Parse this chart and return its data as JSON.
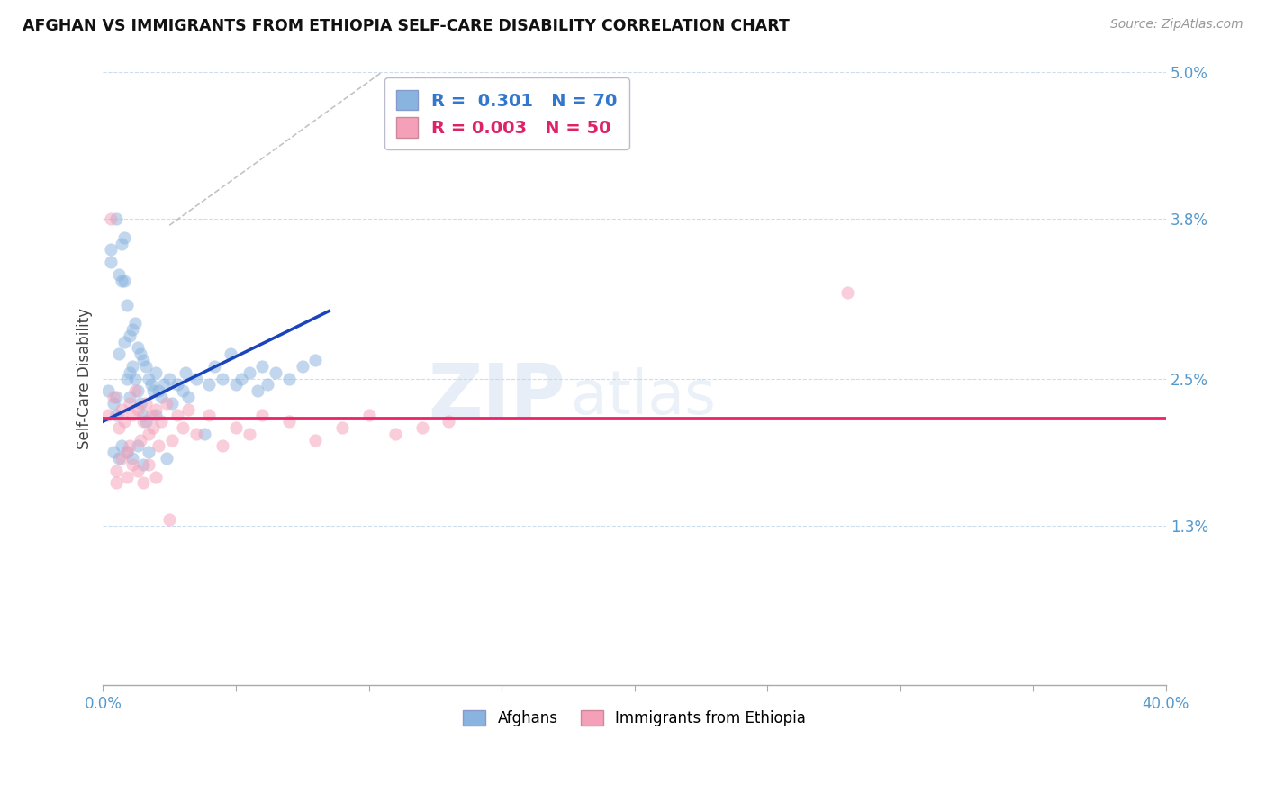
{
  "title": "AFGHAN VS IMMIGRANTS FROM ETHIOPIA SELF-CARE DISABILITY CORRELATION CHART",
  "source": "Source: ZipAtlas.com",
  "ylabel": "Self-Care Disability",
  "xlim": [
    0.0,
    40.0
  ],
  "ylim": [
    0.0,
    5.0
  ],
  "legend_blue_r_val": "0.301",
  "legend_blue_n_val": "70",
  "legend_pink_r_val": "0.003",
  "legend_pink_n_val": "50",
  "legend_label_blue": "Afghans",
  "legend_label_pink": "Immigrants from Ethiopia",
  "blue_color": "#8ab4e0",
  "pink_color": "#f4a0b8",
  "blue_line_color": "#1a44bb",
  "pink_line_color": "#ee2266",
  "scatter_alpha": 0.52,
  "marker_size": 105,
  "watermark_zip": "ZIP",
  "watermark_atlas": "atlas",
  "blue_dots_x": [
    0.2,
    0.3,
    0.3,
    0.4,
    0.5,
    0.5,
    0.5,
    0.6,
    0.6,
    0.7,
    0.7,
    0.8,
    0.8,
    0.8,
    0.9,
    0.9,
    1.0,
    1.0,
    1.0,
    1.1,
    1.1,
    1.2,
    1.2,
    1.3,
    1.3,
    1.4,
    1.4,
    1.5,
    1.5,
    1.6,
    1.6,
    1.7,
    1.8,
    1.9,
    2.0,
    2.0,
    2.1,
    2.2,
    2.3,
    2.5,
    2.6,
    2.8,
    3.0,
    3.1,
    3.2,
    3.5,
    4.0,
    4.2,
    4.5,
    4.8,
    5.0,
    5.2,
    5.5,
    5.8,
    6.0,
    6.2,
    6.5,
    7.0,
    7.5,
    8.0,
    0.4,
    0.6,
    0.7,
    0.9,
    1.1,
    1.3,
    1.5,
    1.7,
    2.4,
    3.8
  ],
  "blue_dots_y": [
    2.4,
    3.55,
    3.45,
    2.3,
    3.8,
    2.2,
    2.35,
    3.35,
    2.7,
    3.6,
    3.3,
    3.65,
    3.3,
    2.8,
    3.1,
    2.5,
    2.85,
    2.55,
    2.35,
    2.9,
    2.6,
    2.95,
    2.5,
    2.75,
    2.4,
    2.7,
    2.3,
    2.65,
    2.2,
    2.6,
    2.15,
    2.5,
    2.45,
    2.4,
    2.55,
    2.2,
    2.4,
    2.35,
    2.45,
    2.5,
    2.3,
    2.45,
    2.4,
    2.55,
    2.35,
    2.5,
    2.45,
    2.6,
    2.5,
    2.7,
    2.45,
    2.5,
    2.55,
    2.4,
    2.6,
    2.45,
    2.55,
    2.5,
    2.6,
    2.65,
    1.9,
    1.85,
    1.95,
    1.9,
    1.85,
    1.95,
    1.8,
    1.9,
    1.85,
    2.05
  ],
  "pink_dots_x": [
    0.2,
    0.3,
    0.4,
    0.5,
    0.6,
    0.7,
    0.8,
    0.9,
    1.0,
    1.0,
    1.1,
    1.2,
    1.3,
    1.4,
    1.5,
    1.6,
    1.7,
    1.8,
    1.9,
    2.0,
    2.1,
    2.2,
    2.4,
    2.6,
    2.8,
    3.0,
    3.2,
    3.5,
    4.0,
    4.5,
    5.0,
    5.5,
    6.0,
    7.0,
    8.0,
    9.0,
    10.0,
    11.0,
    12.0,
    13.0,
    0.5,
    0.7,
    0.9,
    1.1,
    1.3,
    1.5,
    1.7,
    2.0,
    2.5,
    28.0
  ],
  "pink_dots_y": [
    2.2,
    3.8,
    2.35,
    1.65,
    2.1,
    2.25,
    2.15,
    1.9,
    2.3,
    1.95,
    2.2,
    2.4,
    2.25,
    2.0,
    2.15,
    2.3,
    2.05,
    2.2,
    2.1,
    2.25,
    1.95,
    2.15,
    2.3,
    2.0,
    2.2,
    2.1,
    2.25,
    2.05,
    2.2,
    1.95,
    2.1,
    2.05,
    2.2,
    2.15,
    2.0,
    2.1,
    2.2,
    2.05,
    2.1,
    2.15,
    1.75,
    1.85,
    1.7,
    1.8,
    1.75,
    1.65,
    1.8,
    1.7,
    1.35,
    3.2
  ],
  "blue_line_x0": 0.0,
  "blue_line_y0": 2.15,
  "blue_line_x1": 8.5,
  "blue_line_y1": 3.05,
  "pink_line_y": 2.18,
  "dash_start_x": 2.5,
  "dash_start_y": 3.75,
  "dash_end_x": 10.5,
  "dash_end_y": 5.0
}
